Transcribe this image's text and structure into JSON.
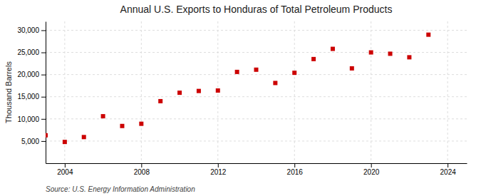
{
  "chart_data": {
    "type": "scatter",
    "title": "Annual U.S. Exports to Honduras of Total Petroleum Products",
    "ylabel": "Thousand Barrels",
    "source": "Source: U.S. Energy Information Administration",
    "x": [
      2003,
      2004,
      2005,
      2006,
      2007,
      2008,
      2009,
      2010,
      2011,
      2012,
      2013,
      2014,
      2015,
      2016,
      2017,
      2018,
      2019,
      2020,
      2021,
      2022,
      2023
    ],
    "values": [
      6300,
      4800,
      5900,
      10600,
      8400,
      8900,
      14000,
      15900,
      16300,
      16400,
      20600,
      21100,
      18100,
      20400,
      23500,
      25800,
      21400,
      25000,
      24700,
      23900,
      29000
    ],
    "color": "#cc0000",
    "marker": "square",
    "xlim": [
      2003.0,
      2025.0
    ],
    "xticks": [
      2004,
      2008,
      2012,
      2016,
      2020,
      2024
    ],
    "ylim": [
      0,
      32000
    ],
    "yticks": [
      {
        "value": 5000,
        "label": "5,000"
      },
      {
        "value": 10000,
        "label": "10,000"
      },
      {
        "value": 15000,
        "label": "15,000"
      },
      {
        "value": 20000,
        "label": "20,000"
      },
      {
        "value": 25000,
        "label": "25,000"
      },
      {
        "value": 30000,
        "label": "30,000"
      }
    ],
    "grid": true
  }
}
